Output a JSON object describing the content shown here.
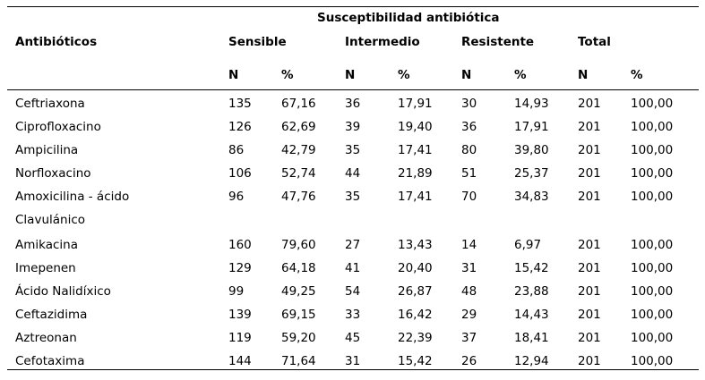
{
  "table": {
    "caption_header": "Susceptibilidad antibiótica",
    "col_antibiotic": "Antibióticos",
    "groups": [
      "Sensible",
      "Intermedio",
      "Resistente",
      "Total"
    ],
    "sub": [
      "N",
      "%",
      "N",
      "%",
      "N",
      "%",
      "N",
      "%"
    ],
    "rows": [
      {
        "name": [
          "Ceftriaxona"
        ],
        "v": [
          "135",
          "67,16",
          "36",
          "17,91",
          "30",
          "14,93",
          "201",
          "100,00"
        ]
      },
      {
        "name": [
          "Ciprofloxacino"
        ],
        "v": [
          "126",
          "62,69",
          "39",
          "19,40",
          "36",
          "17,91",
          "201",
          "100,00"
        ]
      },
      {
        "name": [
          "Ampicilina"
        ],
        "v": [
          "86",
          "42,79",
          "35",
          "17,41",
          "80",
          "39,80",
          "201",
          "100,00"
        ]
      },
      {
        "name": [
          "Norfloxacino"
        ],
        "v": [
          "106",
          "52,74",
          "44",
          "21,89",
          "51",
          "25,37",
          "201",
          "100,00"
        ]
      },
      {
        "name": [
          "Amoxicilina - ácido",
          "Clavulánico"
        ],
        "v": [
          "96",
          "47,76",
          "35",
          "17,41",
          "70",
          "34,83",
          "201",
          "100,00"
        ]
      },
      {
        "name": [
          "Amikacina"
        ],
        "v": [
          "160",
          "79,60",
          "27",
          "13,43",
          "14",
          "6,97",
          "201",
          "100,00"
        ]
      },
      {
        "name": [
          "Imepenen"
        ],
        "v": [
          "129",
          "64,18",
          "41",
          "20,40",
          "31",
          "15,42",
          "201",
          "100,00"
        ]
      },
      {
        "name": [
          "Ácido Nalidíxico"
        ],
        "v": [
          "99",
          "49,25",
          "54",
          "26,87",
          "48",
          "23,88",
          "201",
          "100,00"
        ]
      },
      {
        "name": [
          "Ceftazidima"
        ],
        "v": [
          "139",
          "69,15",
          "33",
          "16,42",
          "29",
          "14,43",
          "201",
          "100,00"
        ]
      },
      {
        "name": [
          "Aztreonan"
        ],
        "v": [
          "119",
          "59,20",
          "45",
          "22,39",
          "37",
          "18,41",
          "201",
          "100,00"
        ]
      },
      {
        "name": [
          "Cefotaxima"
        ],
        "v": [
          "144",
          "71,64",
          "31",
          "15,42",
          "26",
          "12,94",
          "201",
          "100,00"
        ]
      }
    ]
  }
}
